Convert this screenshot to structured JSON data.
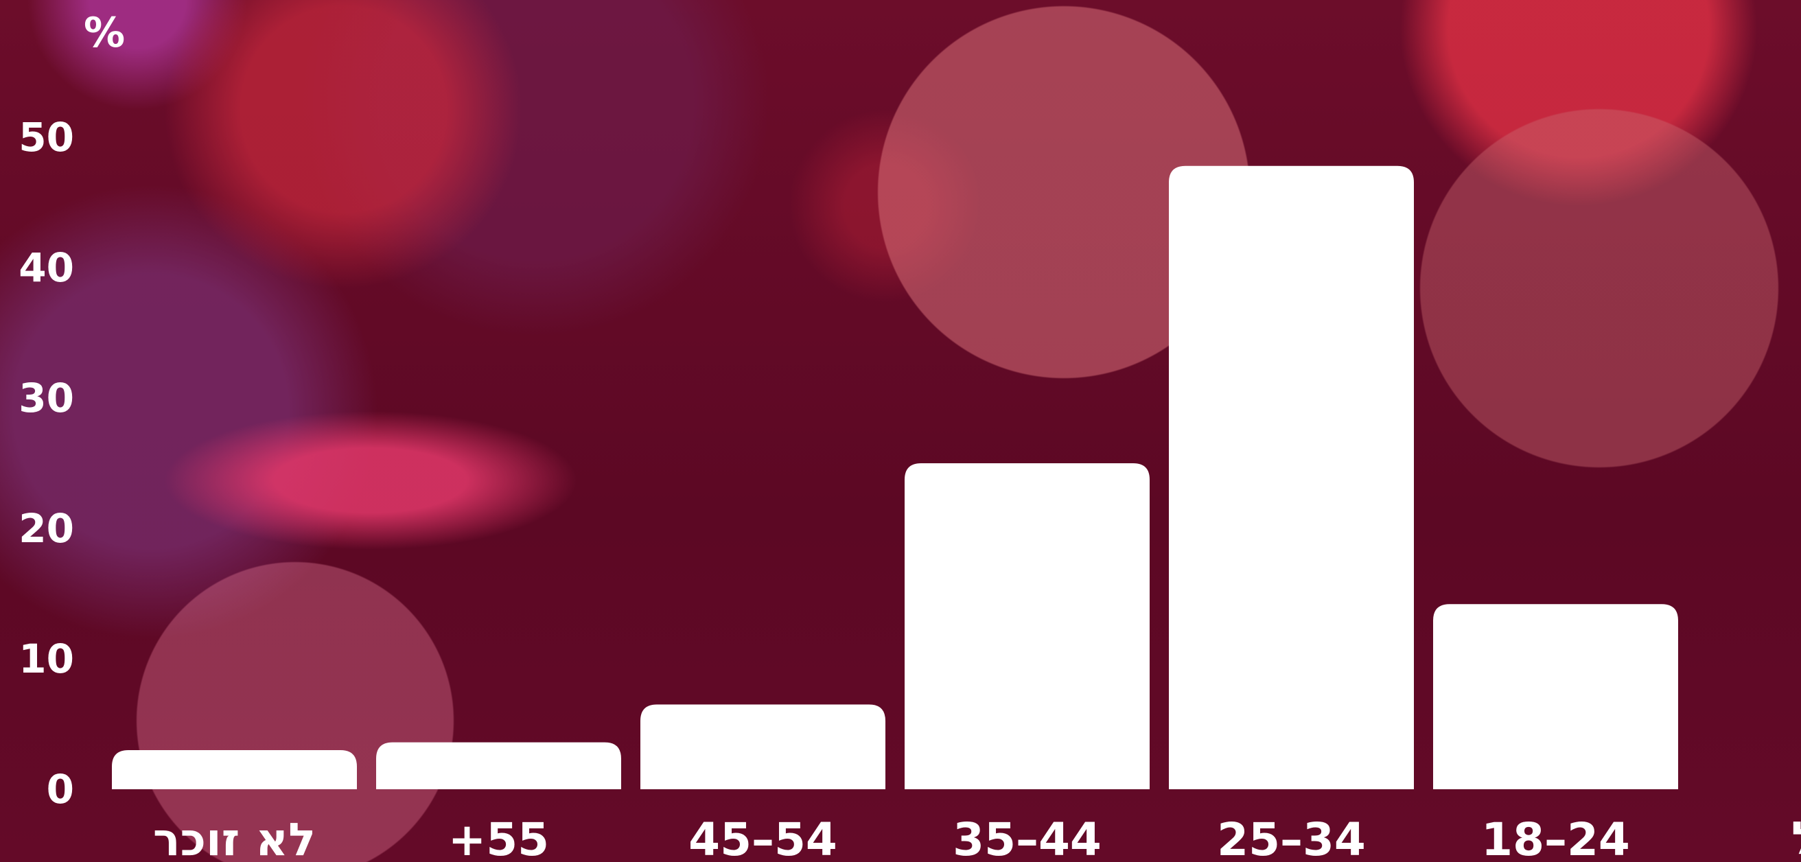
{
  "chart_data": {
    "type": "bar",
    "categories": [
      "לא זוכר",
      "+55",
      "45–54",
      "35–44",
      "25–34",
      "18–24"
    ],
    "values": [
      3,
      3.6,
      6.5,
      25,
      47.8,
      14.2
    ],
    "y_unit_label": "%",
    "x_axis_label": "גיל",
    "ylim": [
      0,
      55
    ],
    "y_ticks": [
      "0",
      "10",
      "20",
      "30",
      "40",
      "50"
    ],
    "grid": false,
    "legend": "none",
    "bar_color": "#ffffff",
    "label_color": "#ffffff"
  }
}
